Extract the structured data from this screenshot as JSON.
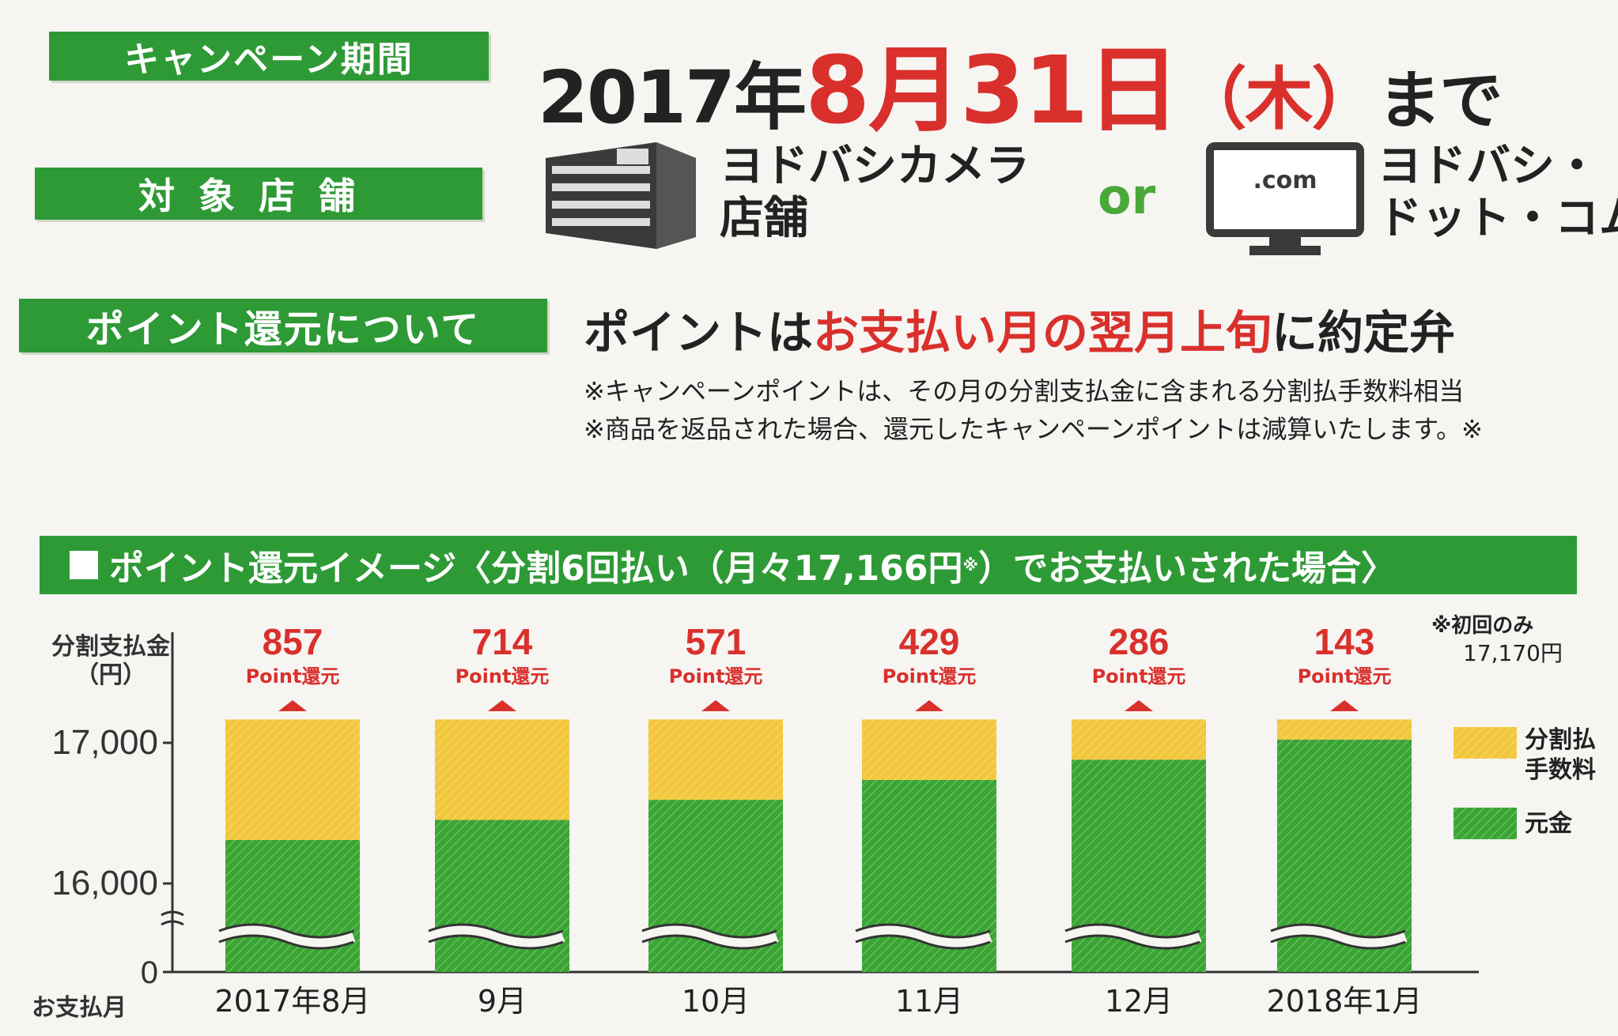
{
  "header": {
    "period_label": "キャンペーン期間",
    "period_year": "2017年",
    "period_month": "8月",
    "period_day": "31日",
    "period_weekday": "（木）",
    "period_suffix": "まで",
    "stores_label": "対象店舗",
    "store1_line1": "ヨドバシカメラ",
    "store1_line2": "店舗",
    "or": "or",
    "monitor_text": ".com",
    "store2_line1": "ヨドバシ・",
    "store2_line2": "ドット・コム",
    "points_label": "ポイント還元について",
    "points_text_a": "ポイントは",
    "points_text_red": "お支払い月の翌月上旬",
    "points_text_b": "に約定弁",
    "note1": "※キャンペーンポイントは、その月の分割支払金に含まれる分割払手数料相当",
    "note2": "※商品を返品された場合、還元したキャンペーンポイントは減算いたします。※"
  },
  "section": {
    "title_a": "ポイント還元イメージ〈分割6回払い（月々17,166円",
    "title_sup": "※",
    "title_b": "）でお支払いされた場合〉"
  },
  "chart_data": {
    "type": "bar",
    "stacked": true,
    "ylabel": "分割支払金\n（円）",
    "xlabel": "お支払月",
    "categories": [
      "2017年8月",
      "9月",
      "10月",
      "11月",
      "12月",
      "2018年1月"
    ],
    "y_ticks": [
      "17,000",
      "16,000",
      "0"
    ],
    "axis_break": true,
    "ylim": [
      16000,
      17200
    ],
    "total_monthly": 17166,
    "series": [
      {
        "name": "元金",
        "color": "#3aa535",
        "values": [
          16309,
          16452,
          16595,
          16737,
          16880,
          17023
        ]
      },
      {
        "name": "分割払手数料",
        "color": "#f2c73c",
        "values": [
          857,
          714,
          571,
          429,
          286,
          143
        ]
      }
    ],
    "points_values": [
      "857",
      "714",
      "571",
      "429",
      "286",
      "143"
    ],
    "points_label": "Point還元",
    "first_note_line1": "※初回のみ",
    "first_note_line2": "17,170円",
    "legend": [
      "分割払\n手数料",
      "元金"
    ],
    "legend_position": "right"
  }
}
